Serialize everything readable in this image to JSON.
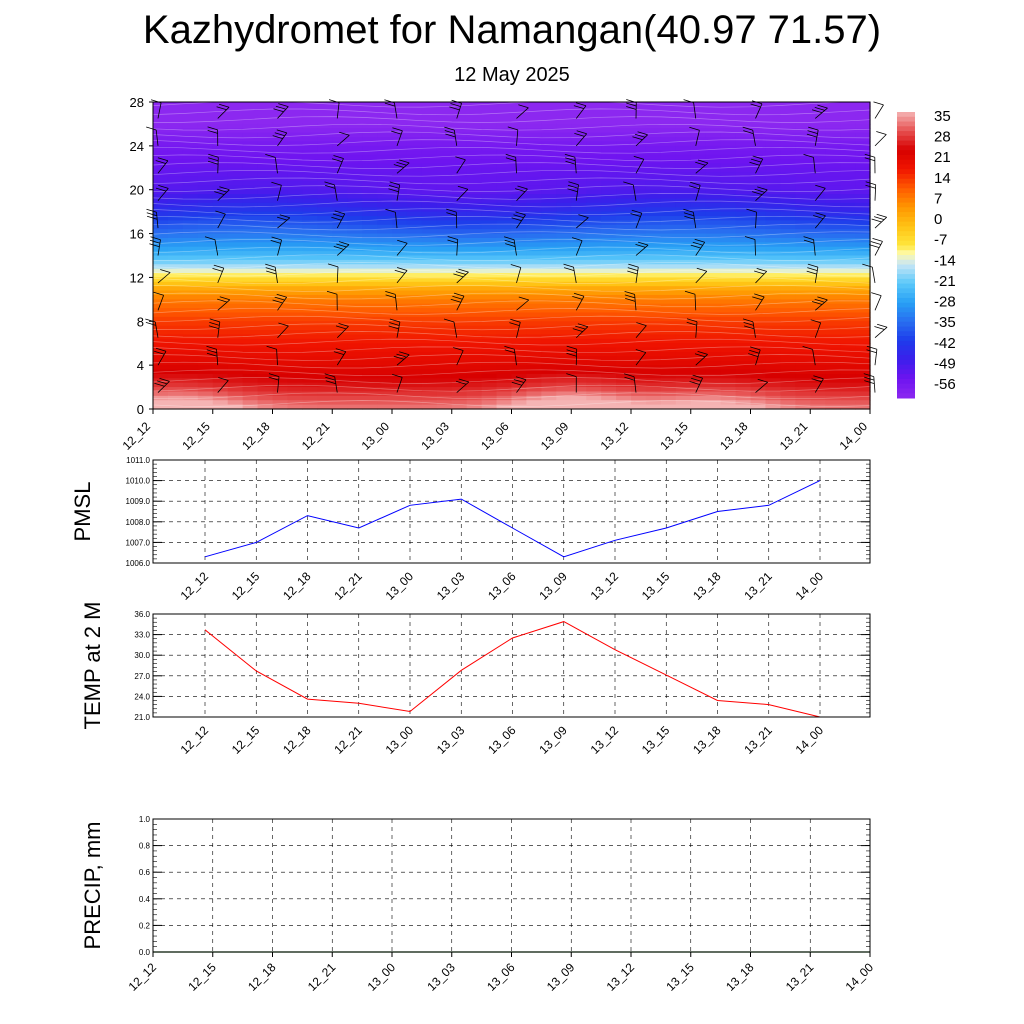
{
  "title": "Kazhydromet for Namangan(40.97 71.57)",
  "subtitle": "12 May 2025",
  "chart_data": [
    {
      "type": "heatmap",
      "name": "vertical-cross-section",
      "xlabel": "",
      "ylabel": "",
      "x_tick_labels": [
        "12_12",
        "12_15",
        "12_18",
        "12_21",
        "13_00",
        "13_03",
        "13_06",
        "13_09",
        "13_12",
        "13_15",
        "13_18",
        "13_21",
        "14_00"
      ],
      "y_ticks": [
        0,
        4,
        8,
        12,
        16,
        20,
        24,
        28
      ],
      "ylim": [
        0,
        28
      ],
      "colorbar_labels": [
        "35",
        "28",
        "21",
        "14",
        "7",
        "0",
        "-7",
        "-14",
        "-21",
        "-28",
        "-35",
        "-42",
        "-49",
        "-56"
      ],
      "colorbar_range": [
        -63,
        42
      ],
      "temperature_profile": {
        "levels": [
          0,
          2,
          4,
          6,
          8,
          10,
          11,
          12,
          13,
          14,
          16,
          18,
          20,
          22,
          24,
          26,
          28
        ],
        "values": [
          38,
          30,
          25,
          21,
          17,
          10,
          4,
          -6,
          -16,
          -24,
          -35,
          -45,
          -53,
          -55,
          -58,
          -63,
          -65
        ]
      },
      "surface_warm_spots": [
        {
          "time_index": 0.4,
          "strength": 12
        },
        {
          "time_index": 7.0,
          "strength": 14
        },
        {
          "time_index": 9.3,
          "strength": 9
        }
      ],
      "wind_barbs": true
    },
    {
      "type": "line",
      "name": "pmsl",
      "ylabel": "PMSL",
      "categories": [
        "12_12",
        "12_15",
        "12_18",
        "12_21",
        "13_00",
        "13_03",
        "13_06",
        "13_09",
        "13_12",
        "13_15",
        "13_18",
        "13_21",
        "14_00"
      ],
      "values": [
        1006.3,
        1007.0,
        1008.3,
        1007.7,
        1008.8,
        1009.1,
        1007.7,
        1006.3,
        1007.1,
        1007.7,
        1008.5,
        1008.8,
        1010.0
      ],
      "ylim": [
        1006.0,
        1011.0
      ],
      "y_ticks": [
        "1006.0",
        "1007.0",
        "1008.0",
        "1009.0",
        "1010.0",
        "1011.0"
      ],
      "color": "#0000ff",
      "grid": true
    },
    {
      "type": "line",
      "name": "temp-2m",
      "ylabel": "TEMP at 2 M",
      "categories": [
        "12_12",
        "12_15",
        "12_18",
        "12_21",
        "13_00",
        "13_03",
        "13_06",
        "13_09",
        "13_12",
        "13_15",
        "13_18",
        "13_21",
        "14_00"
      ],
      "values": [
        33.7,
        27.7,
        23.6,
        23.0,
        21.8,
        27.8,
        32.5,
        34.9,
        30.8,
        27.1,
        23.4,
        22.8,
        21.0
      ],
      "ylim": [
        21.0,
        36.0
      ],
      "y_ticks": [
        "21.0",
        "24.0",
        "27.0",
        "30.0",
        "33.0",
        "36.0"
      ],
      "color": "#ff0000",
      "grid": true
    },
    {
      "type": "line",
      "name": "precip",
      "ylabel": "PRECIP, mm",
      "categories": [
        "12_12",
        "12_15",
        "12_18",
        "12_21",
        "13_00",
        "13_03",
        "13_06",
        "13_09",
        "13_12",
        "13_15",
        "13_18",
        "13_21",
        "14_00"
      ],
      "values": [
        0,
        0,
        0,
        0,
        0,
        0,
        0,
        0,
        0,
        0,
        0,
        0,
        0
      ],
      "ylim": [
        0.0,
        1.0
      ],
      "y_ticks": [
        "0.0",
        "0.2",
        "0.4",
        "0.6",
        "0.8",
        "1.0"
      ],
      "color": "#006400",
      "grid": true
    }
  ]
}
